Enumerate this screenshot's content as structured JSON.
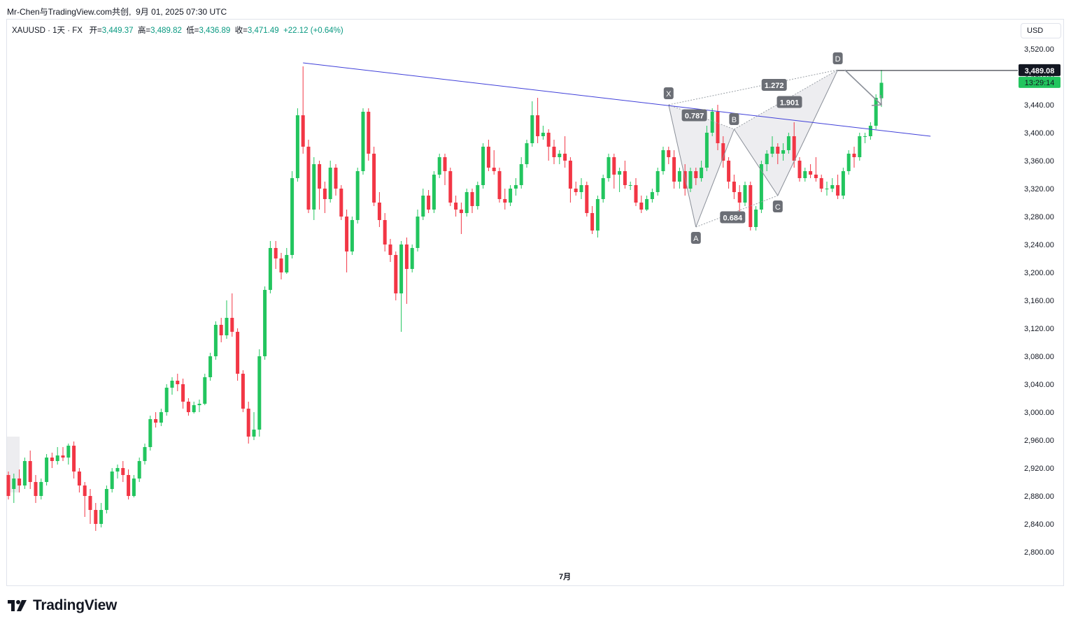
{
  "header": {
    "share_text": "Mr-Chen与TradingView.com共创",
    "date_text": "9月 01, 2025 07:30 UTC"
  },
  "legend": {
    "symbol": "XAUUSD · 1天 · FX",
    "open_label": "开=",
    "open": "3,449.37",
    "high_label": "高=",
    "high": "3,489.82",
    "low_label": "低=",
    "low": "3,436.89",
    "close_label": "收=",
    "close": "3,471.49",
    "change": "+22.12 (+0.64%)"
  },
  "currency_button": "USD",
  "brand": {
    "name": "TradingView",
    "logo_icon": "tradingview-logo-icon"
  },
  "colors": {
    "up": "#22c55e",
    "down": "#f23645",
    "trendline": "#3f3fd9",
    "pattern": "#9aa0a6",
    "price_tag": "#131722",
    "timer_tag": "#22c55e"
  },
  "price_tag": {
    "price": "3,489.08",
    "timer": "13:29:14"
  },
  "chart_data": {
    "type": "candlestick",
    "symbol": "XAUUSD",
    "timeframe": "1D",
    "yaxis_ticks": [
      2800,
      2840,
      2880,
      2920,
      2960,
      3000,
      3040,
      3080,
      3120,
      3160,
      3200,
      3240,
      3280,
      3320,
      3360,
      3400,
      3440,
      3480,
      3520
    ],
    "yaxis_tick_labels": [
      "2,800.00",
      "2,840.00",
      "2,880.00",
      "2,920.00",
      "2,960.00",
      "3,000.00",
      "3,040.00",
      "3,080.00",
      "3,120.00",
      "3,160.00",
      "3,200.00",
      "3,240.00",
      "3,280.00",
      "3,320.00",
      "3,360.00",
      "3,400.00",
      "3,440.00",
      "3,480.00",
      "3,520.00"
    ],
    "ylim": [
      2770,
      3550
    ],
    "xaxis_labels": [
      {
        "index": 102,
        "label": "7月"
      }
    ],
    "candles": [
      [
        2910,
        2880,
        2915,
        2875
      ],
      [
        2890,
        2905,
        2912,
        2870
      ],
      [
        2905,
        2895,
        2918,
        2885
      ],
      [
        2895,
        2930,
        2935,
        2890
      ],
      [
        2930,
        2900,
        2945,
        2890
      ],
      [
        2900,
        2880,
        2910,
        2870
      ],
      [
        2880,
        2900,
        2905,
        2875
      ],
      [
        2900,
        2935,
        2940,
        2895
      ],
      [
        2935,
        2930,
        2942,
        2920
      ],
      [
        2930,
        2938,
        2950,
        2925
      ],
      [
        2938,
        2935,
        2950,
        2930
      ],
      [
        2935,
        2952,
        2955,
        2925
      ],
      [
        2952,
        2915,
        2958,
        2905
      ],
      [
        2915,
        2895,
        2920,
        2885
      ],
      [
        2895,
        2880,
        2900,
        2850
      ],
      [
        2880,
        2860,
        2890,
        2840
      ],
      [
        2860,
        2840,
        2870,
        2830
      ],
      [
        2840,
        2860,
        2870,
        2835
      ],
      [
        2860,
        2890,
        2895,
        2855
      ],
      [
        2890,
        2915,
        2920,
        2885
      ],
      [
        2915,
        2920,
        2925,
        2905
      ],
      [
        2920,
        2910,
        2930,
        2900
      ],
      [
        2910,
        2880,
        2918,
        2875
      ],
      [
        2880,
        2905,
        2910,
        2878
      ],
      [
        2905,
        2930,
        2935,
        2900
      ],
      [
        2930,
        2950,
        2955,
        2925
      ],
      [
        2950,
        2990,
        2995,
        2945
      ],
      [
        2990,
        2985,
        3000,
        2978
      ],
      [
        2985,
        3000,
        3005,
        2980
      ],
      [
        3000,
        3035,
        3040,
        2995
      ],
      [
        3035,
        3045,
        3050,
        3025
      ],
      [
        3045,
        3040,
        3055,
        3030
      ],
      [
        3040,
        3015,
        3048,
        3005
      ],
      [
        3015,
        3000,
        3020,
        2995
      ],
      [
        3000,
        3010,
        3015,
        2998
      ],
      [
        3010,
        3012,
        3018,
        3000
      ],
      [
        3012,
        3050,
        3055,
        3010
      ],
      [
        3050,
        3080,
        3085,
        3045
      ],
      [
        3080,
        3125,
        3130,
        3075
      ],
      [
        3125,
        3110,
        3135,
        3100
      ],
      [
        3110,
        3135,
        3160,
        3105
      ],
      [
        3135,
        3115,
        3170,
        3108
      ],
      [
        3115,
        3055,
        3120,
        3045
      ],
      [
        3055,
        3005,
        3060,
        3000
      ],
      [
        3005,
        2965,
        3015,
        2955
      ],
      [
        2965,
        2975,
        3000,
        2960
      ],
      [
        2975,
        3080,
        3090,
        2965
      ],
      [
        3080,
        3175,
        3180,
        3075
      ],
      [
        3175,
        3235,
        3245,
        3170
      ],
      [
        3235,
        3220,
        3245,
        3205
      ],
      [
        3220,
        3200,
        3228,
        3190
      ],
      [
        3200,
        3225,
        3235,
        3198
      ],
      [
        3225,
        3335,
        3345,
        3220
      ],
      [
        3335,
        3425,
        3435,
        3330
      ],
      [
        3425,
        3380,
        3495,
        3370
      ],
      [
        3380,
        3290,
        3390,
        3285
      ],
      [
        3290,
        3355,
        3365,
        3275
      ],
      [
        3355,
        3320,
        3360,
        3290
      ],
      [
        3320,
        3305,
        3330,
        3285
      ],
      [
        3305,
        3350,
        3360,
        3300
      ],
      [
        3350,
        3320,
        3355,
        3310
      ],
      [
        3320,
        3280,
        3325,
        3275
      ],
      [
        3280,
        3230,
        3290,
        3200
      ],
      [
        3230,
        3275,
        3280,
        3225
      ],
      [
        3275,
        3345,
        3350,
        3270
      ],
      [
        3345,
        3430,
        3435,
        3340
      ],
      [
        3430,
        3370,
        3435,
        3360
      ],
      [
        3370,
        3300,
        3380,
        3295
      ],
      [
        3300,
        3275,
        3315,
        3265
      ],
      [
        3275,
        3240,
        3285,
        3230
      ],
      [
        3240,
        3225,
        3248,
        3215
      ],
      [
        3225,
        3170,
        3230,
        3160
      ],
      [
        3170,
        3240,
        3245,
        3115
      ],
      [
        3240,
        3205,
        3250,
        3155
      ],
      [
        3205,
        3235,
        3240,
        3200
      ],
      [
        3235,
        3280,
        3290,
        3230
      ],
      [
        3280,
        3310,
        3320,
        3275
      ],
      [
        3310,
        3290,
        3318,
        3285
      ],
      [
        3290,
        3340,
        3345,
        3285
      ],
      [
        3340,
        3365,
        3370,
        3335
      ],
      [
        3365,
        3345,
        3370,
        3325
      ],
      [
        3345,
        3300,
        3350,
        3295
      ],
      [
        3300,
        3290,
        3310,
        3280
      ],
      [
        3290,
        3285,
        3300,
        3255
      ],
      [
        3285,
        3315,
        3320,
        3280
      ],
      [
        3315,
        3295,
        3320,
        3285
      ],
      [
        3295,
        3325,
        3330,
        3290
      ],
      [
        3325,
        3380,
        3385,
        3320
      ],
      [
        3380,
        3350,
        3390,
        3345
      ],
      [
        3350,
        3345,
        3375,
        3340
      ],
      [
        3345,
        3305,
        3350,
        3300
      ],
      [
        3305,
        3300,
        3320,
        3290
      ],
      [
        3300,
        3320,
        3325,
        3295
      ],
      [
        3320,
        3325,
        3335,
        3310
      ],
      [
        3325,
        3355,
        3365,
        3320
      ],
      [
        3355,
        3385,
        3390,
        3350
      ],
      [
        3385,
        3425,
        3445,
        3380
      ],
      [
        3425,
        3395,
        3450,
        3385
      ],
      [
        3395,
        3400,
        3410,
        3390
      ],
      [
        3400,
        3380,
        3405,
        3360
      ],
      [
        3380,
        3365,
        3390,
        3355
      ],
      [
        3365,
        3370,
        3375,
        3355
      ],
      [
        3370,
        3360,
        3395,
        3350
      ],
      [
        3360,
        3320,
        3365,
        3300
      ],
      [
        3320,
        3315,
        3330,
        3310
      ],
      [
        3315,
        3325,
        3335,
        3305
      ],
      [
        3325,
        3285,
        3330,
        3280
      ],
      [
        3285,
        3260,
        3295,
        3255
      ],
      [
        3260,
        3305,
        3310,
        3250
      ],
      [
        3305,
        3335,
        3340,
        3300
      ],
      [
        3335,
        3365,
        3370,
        3330
      ],
      [
        3365,
        3340,
        3370,
        3320
      ],
      [
        3340,
        3345,
        3350,
        3315
      ],
      [
        3345,
        3325,
        3360,
        3320
      ],
      [
        3325,
        3325,
        3330,
        3318
      ],
      [
        3325,
        3300,
        3335,
        3295
      ],
      [
        3300,
        3290,
        3310,
        3285
      ],
      [
        3290,
        3305,
        3310,
        3288
      ],
      [
        3305,
        3315,
        3320,
        3300
      ],
      [
        3315,
        3345,
        3350,
        3310
      ],
      [
        3345,
        3375,
        3380,
        3340
      ],
      [
        3375,
        3365,
        3380,
        3355
      ],
      [
        3365,
        3330,
        3375,
        3320
      ],
      [
        3330,
        3345,
        3350,
        3320
      ],
      [
        3345,
        3320,
        3355,
        3310
      ],
      [
        3320,
        3345,
        3350,
        3315
      ],
      [
        3345,
        3335,
        3350,
        3325
      ],
      [
        3335,
        3350,
        3360,
        3330
      ],
      [
        3350,
        3400,
        3410,
        3345
      ],
      [
        3400,
        3430,
        3435,
        3395
      ],
      [
        3430,
        3385,
        3440,
        3375
      ],
      [
        3385,
        3360,
        3395,
        3350
      ],
      [
        3360,
        3330,
        3365,
        3320
      ],
      [
        3330,
        3315,
        3340,
        3305
      ],
      [
        3315,
        3300,
        3325,
        3285
      ],
      [
        3300,
        3325,
        3330,
        3295
      ],
      [
        3325,
        3265,
        3330,
        3260
      ],
      [
        3265,
        3290,
        3295,
        3260
      ],
      [
        3290,
        3355,
        3360,
        3285
      ],
      [
        3355,
        3370,
        3375,
        3345
      ],
      [
        3370,
        3380,
        3395,
        3365
      ],
      [
        3380,
        3370,
        3385,
        3355
      ],
      [
        3370,
        3375,
        3385,
        3360
      ],
      [
        3375,
        3395,
        3400,
        3370
      ],
      [
        3395,
        3360,
        3415,
        3350
      ],
      [
        3360,
        3335,
        3365,
        3330
      ],
      [
        3335,
        3345,
        3350,
        3330
      ],
      [
        3345,
        3340,
        3355,
        3335
      ],
      [
        3340,
        3335,
        3365,
        3330
      ],
      [
        3335,
        3320,
        3340,
        3315
      ],
      [
        3320,
        3320,
        3330,
        3310
      ],
      [
        3320,
        3325,
        3335,
        3315
      ],
      [
        3325,
        3310,
        3340,
        3305
      ],
      [
        3310,
        3345,
        3350,
        3305
      ],
      [
        3345,
        3370,
        3375,
        3340
      ],
      [
        3370,
        3365,
        3380,
        3350
      ],
      [
        3365,
        3395,
        3400,
        3360
      ],
      [
        3395,
        3395,
        3400,
        3385
      ],
      [
        3395,
        3410,
        3415,
        3390
      ],
      [
        3410,
        3450,
        3455,
        3405
      ],
      [
        3449.37,
        3471.49,
        3489.82,
        3436.89
      ]
    ],
    "trendline": {
      "from": {
        "index": 54,
        "price": 3500
      },
      "to": {
        "index": 169,
        "price": 3395
      }
    },
    "harmonic_pattern": {
      "points": [
        {
          "label": "X",
          "index": 121,
          "price": 3440
        },
        {
          "label": "A",
          "index": 126,
          "price": 3265
        },
        {
          "label": "B",
          "index": 133,
          "price": 3405
        },
        {
          "label": "C",
          "index": 141,
          "price": 3310
        },
        {
          "label": "D",
          "index": 152,
          "price": 3490
        }
      ],
      "ratios": [
        {
          "label": "0.787",
          "between": "XA-B"
        },
        {
          "label": "0.684",
          "between": "AB-C"
        },
        {
          "label": "1.901",
          "between": "BC-D"
        },
        {
          "label": "1.272",
          "between": "XA-D"
        }
      ]
    },
    "current_price": 3489.08,
    "grid": false,
    "legend_position": "top-left"
  }
}
